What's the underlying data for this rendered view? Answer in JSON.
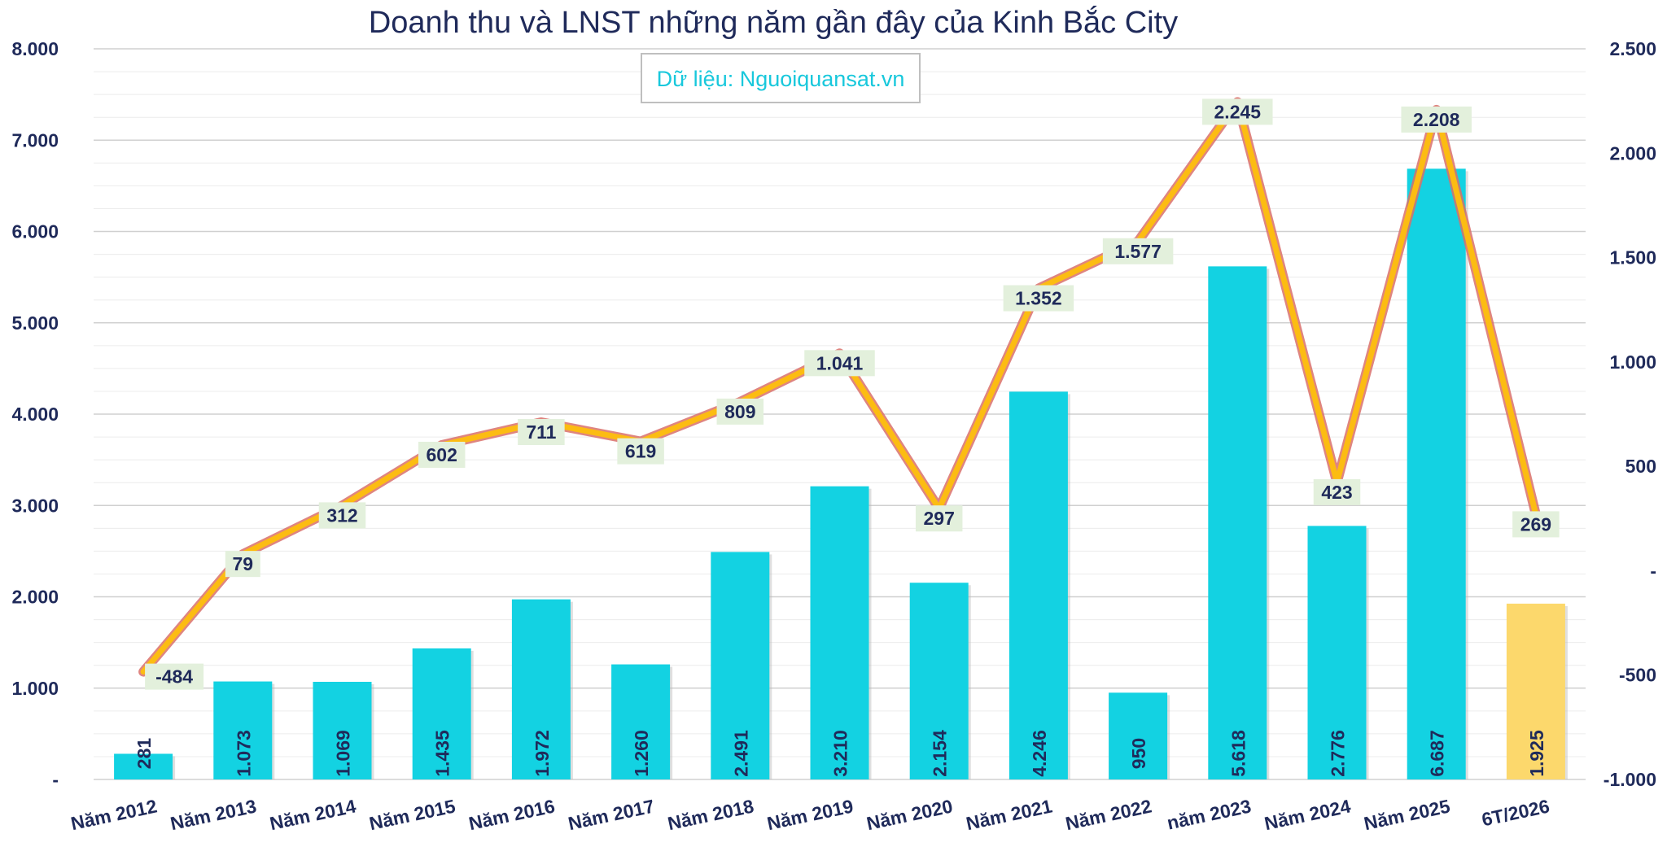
{
  "chart_data": {
    "type": "bar",
    "title": "Doanh thu và LNST những năm gần đây của Kinh Bắc City",
    "source_note": "Dữ liệu: Nguoiquansat.vn",
    "categories": [
      "Năm 2012",
      "Năm 2013",
      "Năm 2014",
      "Năm 2015",
      "Năm 2016",
      "Năm 2017",
      "Năm 2018",
      "Năm 2019",
      "Năm 2020",
      "Năm 2021",
      "Năm 2022",
      "năm 2023",
      "Năm 2024",
      "Năm 2025",
      "6T/2026"
    ],
    "series": [
      {
        "type": "bar",
        "axis": "left",
        "values": [
          281,
          1073,
          1069,
          1435,
          1972,
          1260,
          2491,
          3210,
          2154,
          4246,
          950,
          5618,
          2776,
          6687,
          1925
        ],
        "labels": [
          "281",
          "1.073",
          "1.069",
          "1.435",
          "1.972",
          "1.260",
          "2.491",
          "3.210",
          "2.154",
          "4.246",
          "950",
          "5.618",
          "2.776",
          "6.687",
          "1.925"
        ],
        "color": "#13d2e2",
        "highlight_last_color": "#fcd86c"
      },
      {
        "type": "line",
        "axis": "right",
        "values": [
          -484,
          79,
          312,
          602,
          711,
          619,
          809,
          1041,
          297,
          1352,
          1577,
          2245,
          423,
          2208,
          269
        ],
        "labels": [
          "-484",
          "79",
          "312",
          "602",
          "711",
          "619",
          "809",
          "1.041",
          "297",
          "1.352",
          "1.577",
          "2.245",
          "423",
          "2.208",
          "269"
        ],
        "color": "#fcbc12",
        "shadow_color": "#d9706a",
        "label_bg": "#e3f0dc"
      }
    ],
    "y_left": {
      "lim": [
        0,
        8000
      ],
      "ticks": [
        0,
        1000,
        2000,
        3000,
        4000,
        5000,
        6000,
        7000,
        8000
      ],
      "tick_labels": [
        "-",
        "1.000",
        "2.000",
        "3.000",
        "4.000",
        "5.000",
        "6.000",
        "7.000",
        "8.000"
      ]
    },
    "y_right": {
      "lim": [
        -1000,
        2500
      ],
      "ticks": [
        -1000,
        -500,
        0,
        500,
        1000,
        1500,
        2000,
        2500
      ],
      "tick_labels": [
        "-1.000",
        "-500",
        "-",
        "500",
        "1.000",
        "1.500",
        "2.000",
        "2.500"
      ]
    },
    "grid": true
  }
}
